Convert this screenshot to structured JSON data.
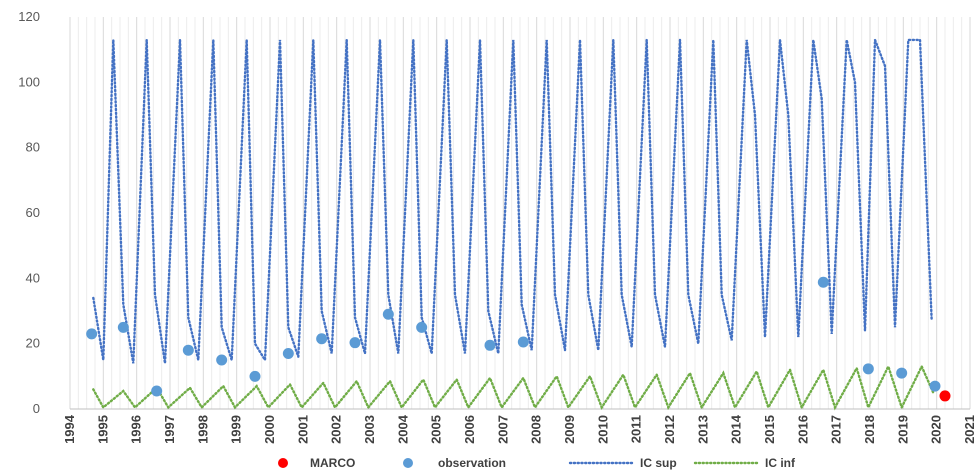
{
  "chart_data": {
    "type": "scatter",
    "title": "",
    "xlabel": "",
    "ylabel": "",
    "xlim": [
      1994,
      2021
    ],
    "ylim": [
      0,
      120
    ],
    "x_ticks": [
      "1994",
      "1995",
      "1996",
      "1997",
      "1998",
      "1999",
      "2000",
      "2001",
      "2002",
      "2003",
      "2004",
      "2005",
      "2006",
      "2007",
      "2008",
      "2009",
      "2010",
      "2011",
      "2012",
      "2013",
      "2014",
      "2015",
      "2016",
      "2017",
      "2018",
      "2019",
      "2020",
      "2021"
    ],
    "y_ticks": [
      "0",
      "20",
      "40",
      "60",
      "80",
      "100",
      "120"
    ],
    "grid": "vertical",
    "legend_position": "bottom",
    "series": [
      {
        "name": "MARCO",
        "kind": "marker",
        "color": "#ff0000",
        "points": [
          [
            2020.25,
            4
          ]
        ]
      },
      {
        "name": "observation",
        "kind": "marker",
        "color": "#5b9bd5",
        "points": [
          [
            1994.65,
            23
          ],
          [
            1995.6,
            25
          ],
          [
            1996.6,
            5.5
          ],
          [
            1997.55,
            18
          ],
          [
            1998.55,
            15
          ],
          [
            1999.55,
            10
          ],
          [
            2000.55,
            17
          ],
          [
            2001.55,
            21.5
          ],
          [
            2002.55,
            20.3
          ],
          [
            2003.55,
            29
          ],
          [
            2004.55,
            25
          ],
          [
            2005.55,
            null
          ],
          [
            2006.6,
            19.5
          ],
          [
            2007.6,
            20.5
          ],
          [
            2016.6,
            38.8
          ],
          [
            2017.95,
            12.3
          ],
          [
            2018.95,
            11
          ],
          [
            2019.95,
            7
          ]
        ]
      },
      {
        "name": "IC sup",
        "kind": "dotted-line",
        "color": "#4472c4",
        "points": [
          [
            1994.7,
            34
          ],
          [
            1995.0,
            15
          ],
          [
            1995.3,
            113
          ],
          [
            1995.6,
            32
          ],
          [
            1995.9,
            14
          ],
          [
            1996.3,
            113
          ],
          [
            1996.55,
            35
          ],
          [
            1996.85,
            14
          ],
          [
            1997.3,
            113
          ],
          [
            1997.55,
            28
          ],
          [
            1997.85,
            15
          ],
          [
            1998.3,
            113
          ],
          [
            1998.55,
            25
          ],
          [
            1998.85,
            15
          ],
          [
            1999.3,
            113
          ],
          [
            1999.55,
            20
          ],
          [
            1999.85,
            15
          ],
          [
            2000.3,
            113
          ],
          [
            2000.55,
            25
          ],
          [
            2000.85,
            16
          ],
          [
            2001.3,
            113
          ],
          [
            2001.55,
            30
          ],
          [
            2001.85,
            17
          ],
          [
            2002.3,
            113
          ],
          [
            2002.55,
            28
          ],
          [
            2002.85,
            17
          ],
          [
            2003.3,
            113
          ],
          [
            2003.55,
            35
          ],
          [
            2003.85,
            17
          ],
          [
            2004.3,
            113
          ],
          [
            2004.55,
            28
          ],
          [
            2004.85,
            17
          ],
          [
            2005.3,
            113
          ],
          [
            2005.55,
            35
          ],
          [
            2005.85,
            17
          ],
          [
            2006.3,
            113
          ],
          [
            2006.55,
            30
          ],
          [
            2006.85,
            17
          ],
          [
            2007.3,
            113
          ],
          [
            2007.55,
            32
          ],
          [
            2007.85,
            18
          ],
          [
            2008.3,
            113
          ],
          [
            2008.55,
            35
          ],
          [
            2008.85,
            18
          ],
          [
            2009.3,
            113
          ],
          [
            2009.55,
            35
          ],
          [
            2009.85,
            18
          ],
          [
            2010.3,
            113
          ],
          [
            2010.55,
            35
          ],
          [
            2010.85,
            19
          ],
          [
            2011.3,
            113
          ],
          [
            2011.55,
            35
          ],
          [
            2011.85,
            19
          ],
          [
            2012.3,
            113
          ],
          [
            2012.55,
            35
          ],
          [
            2012.85,
            20
          ],
          [
            2013.3,
            113
          ],
          [
            2013.55,
            35
          ],
          [
            2013.85,
            21
          ],
          [
            2014.3,
            113
          ],
          [
            2014.55,
            90
          ],
          [
            2014.85,
            22
          ],
          [
            2015.3,
            113
          ],
          [
            2015.55,
            90
          ],
          [
            2015.85,
            22
          ],
          [
            2016.3,
            113
          ],
          [
            2016.55,
            95
          ],
          [
            2016.85,
            23
          ],
          [
            2017.3,
            113
          ],
          [
            2017.55,
            100
          ],
          [
            2017.85,
            24
          ],
          [
            2018.15,
            113
          ],
          [
            2018.45,
            105
          ],
          [
            2018.75,
            25
          ],
          [
            2019.15,
            113
          ],
          [
            2019.5,
            113
          ],
          [
            2019.85,
            27
          ]
        ]
      },
      {
        "name": "IC inf",
        "kind": "dotted-line",
        "color": "#70ad47",
        "points": [
          [
            1994.7,
            6
          ],
          [
            1995.0,
            0.5
          ],
          [
            1995.6,
            5.5
          ],
          [
            1995.95,
            0.5
          ],
          [
            1996.6,
            6.5
          ],
          [
            1996.95,
            0.5
          ],
          [
            1997.6,
            6.5
          ],
          [
            1997.95,
            0.5
          ],
          [
            1998.6,
            7
          ],
          [
            1998.95,
            0.5
          ],
          [
            1999.6,
            7
          ],
          [
            1999.95,
            0.5
          ],
          [
            2000.6,
            7.5
          ],
          [
            2000.95,
            0.5
          ],
          [
            2001.6,
            8
          ],
          [
            2001.95,
            0.5
          ],
          [
            2002.6,
            8.5
          ],
          [
            2002.95,
            0.5
          ],
          [
            2003.6,
            8.5
          ],
          [
            2003.95,
            0.5
          ],
          [
            2004.6,
            9
          ],
          [
            2004.95,
            0.5
          ],
          [
            2005.6,
            9
          ],
          [
            2005.95,
            0.5
          ],
          [
            2006.6,
            9.5
          ],
          [
            2006.95,
            0.5
          ],
          [
            2007.6,
            9.5
          ],
          [
            2007.95,
            0.5
          ],
          [
            2008.6,
            10
          ],
          [
            2008.95,
            0.5
          ],
          [
            2009.6,
            10
          ],
          [
            2009.95,
            0.5
          ],
          [
            2010.6,
            10.5
          ],
          [
            2010.95,
            0.5
          ],
          [
            2011.6,
            10.5
          ],
          [
            2011.95,
            0.5
          ],
          [
            2012.6,
            11
          ],
          [
            2012.95,
            0.5
          ],
          [
            2013.6,
            11
          ],
          [
            2013.95,
            0.5
          ],
          [
            2014.6,
            11.5
          ],
          [
            2014.95,
            0.5
          ],
          [
            2015.6,
            12
          ],
          [
            2015.95,
            0.5
          ],
          [
            2016.6,
            12
          ],
          [
            2016.95,
            0.5
          ],
          [
            2017.6,
            12.5
          ],
          [
            2017.95,
            0.5
          ],
          [
            2018.55,
            13
          ],
          [
            2018.95,
            0.5
          ],
          [
            2019.55,
            13
          ],
          [
            2019.9,
            5
          ]
        ]
      }
    ]
  }
}
